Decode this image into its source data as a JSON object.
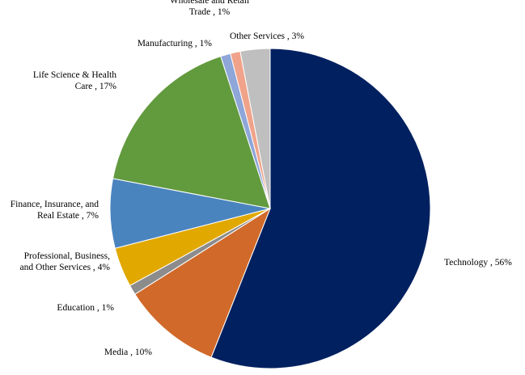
{
  "chart_data": {
    "type": "pie",
    "title": "",
    "slices": [
      {
        "label_lines": [
          "Technology , 56%"
        ],
        "value": 56,
        "color": "#002060"
      },
      {
        "label_lines": [
          "Media , 10%"
        ],
        "value": 10,
        "color": "#D0692A"
      },
      {
        "label_lines": [
          "Education , 1%"
        ],
        "value": 1,
        "color": "#8C8C8C"
      },
      {
        "label_lines": [
          "Professional, Business,",
          "and Other Services , 4%"
        ],
        "value": 4,
        "color": "#E1A800"
      },
      {
        "label_lines": [
          "Finance, Insurance, and",
          "Real Estate , 7%"
        ],
        "value": 7,
        "color": "#4A84BF"
      },
      {
        "label_lines": [
          "Life Science & Health",
          "Care , 17%"
        ],
        "value": 17,
        "color": "#629A3E"
      },
      {
        "label_lines": [
          "Manufacturing , 1%"
        ],
        "value": 1,
        "color": "#8EA6D8"
      },
      {
        "label_lines": [
          "Wholesale and Retail",
          "Trade , 1%"
        ],
        "value": 1,
        "color": "#F0A38A"
      },
      {
        "label_lines": [
          "Other Services , 3%"
        ],
        "value": 3,
        "color": "#BFBFBF"
      }
    ]
  }
}
